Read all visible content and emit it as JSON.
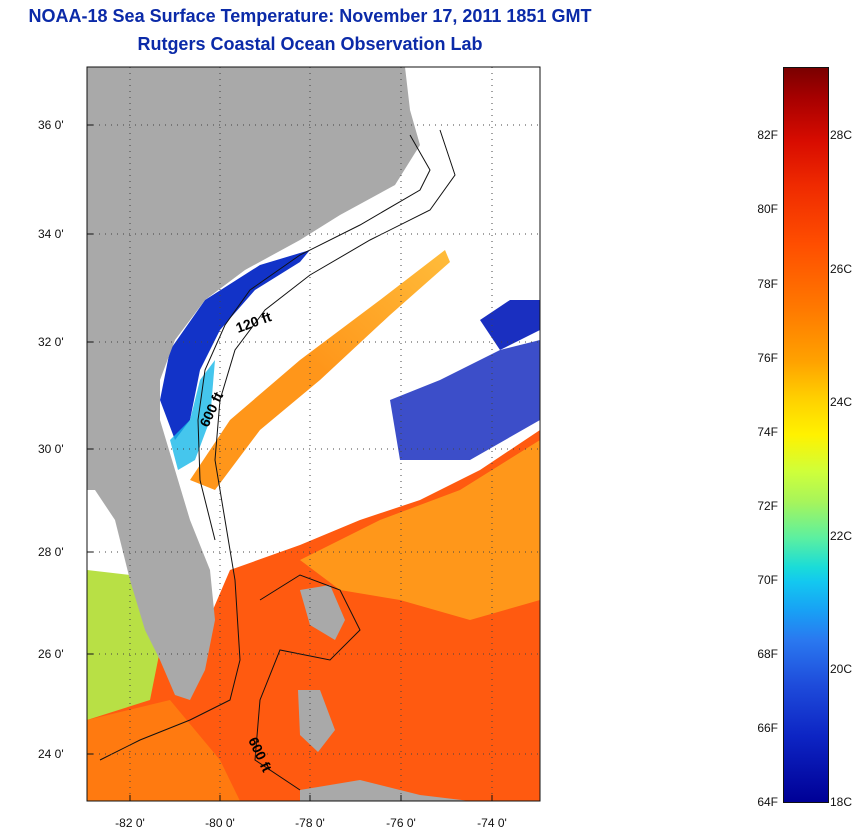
{
  "title": "NOAA-18 Sea Surface Temperature:  November 17, 2011 1851 GMT",
  "subtitle": "Rutgers Coastal Ocean Observation Lab",
  "map": {
    "lat_ticks": [
      "36 0'",
      "34 0'",
      "32 0'",
      "30 0'",
      "28 0'",
      "26 0'",
      "24 0'"
    ],
    "lon_ticks": [
      "-82 0'",
      "-80 0'",
      "-78 0'",
      "-76 0'",
      "-74 0'"
    ],
    "contour_labels": [
      "120 ft",
      "600 ft",
      "600 ft"
    ],
    "colors": {
      "land": "#a9a9a9",
      "cloud_mask": "#ffffff",
      "warm": "#ff4a00",
      "cold": "#1030c8"
    }
  },
  "colorbar": {
    "f_labels": [
      "82F",
      "80F",
      "78F",
      "76F",
      "74F",
      "72F",
      "70F",
      "68F",
      "66F",
      "64F"
    ],
    "c_labels": [
      "28C",
      "26C",
      "24C",
      "22C",
      "20C",
      "18C"
    ]
  }
}
